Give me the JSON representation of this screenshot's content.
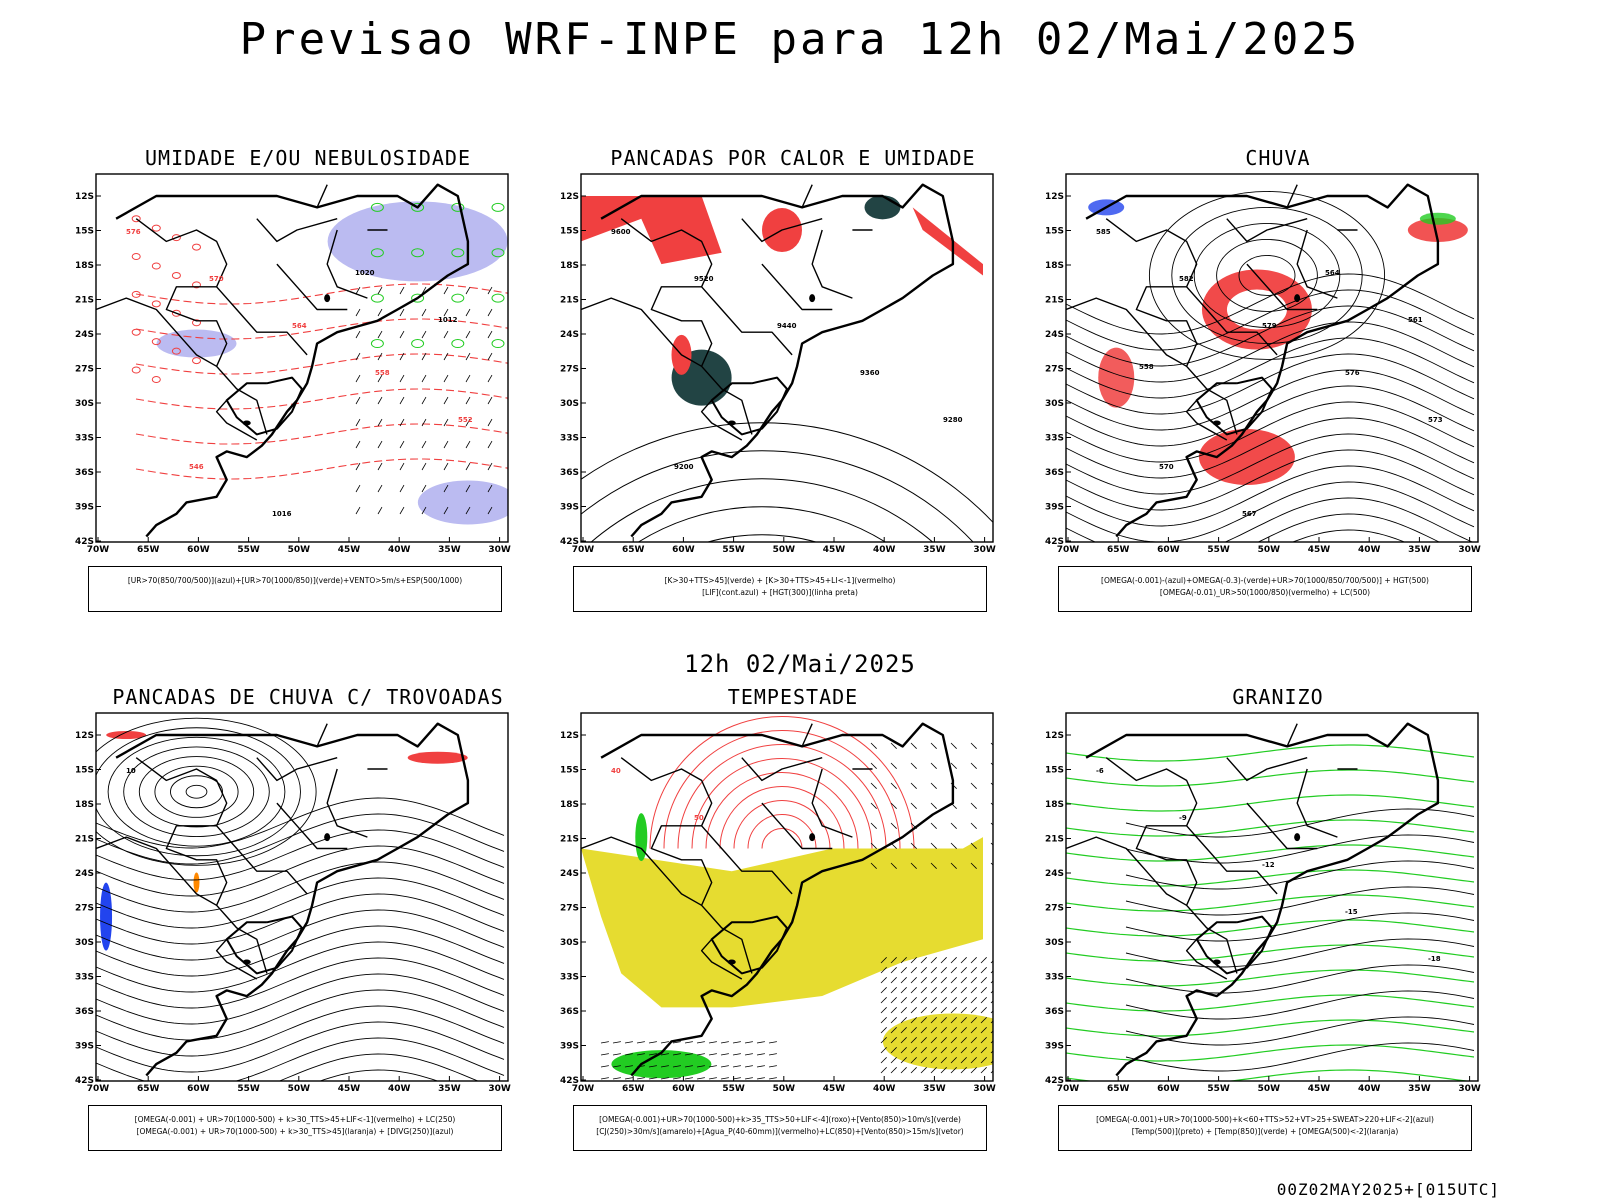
{
  "main_title": "Previsao WRF-INPE  para 12h 02/Mai/2025",
  "mid_title": "12h 02/Mai/2025",
  "footer": "00Z02MAY2025+[015UTC]",
  "axes": {
    "lat_labels": [
      "12S",
      "15S",
      "18S",
      "21S",
      "24S",
      "27S",
      "30S",
      "33S",
      "36S",
      "39S",
      "42S"
    ],
    "lon_labels": [
      "70W",
      "65W",
      "60W",
      "55W",
      "50W",
      "45W",
      "40W",
      "35W",
      "30W"
    ]
  },
  "colors": {
    "red": "#f04040",
    "green": "#22cc22",
    "blue": "#2244ee",
    "lavender": "#aaaaee",
    "darkteal": "#224444",
    "yellow": "#e6dc30",
    "orange": "#ff8800"
  },
  "panels": [
    {
      "title": "UMIDADE E/OU NEBULOSIDADE",
      "legend": [
        "[UR>70(850/700/500)](azul)+[UR>70(1000/850)](verde)+VENTO>5m/s+ESP(500/1000)"
      ],
      "contour_labels": [
        "576",
        "570",
        "564",
        "558",
        "552",
        "546",
        "1016",
        "1020",
        "1012"
      ]
    },
    {
      "title": "PANCADAS POR CALOR E UMIDADE",
      "legend": [
        "[K>30+TTS>45](verde)  +  [K>30+TTS>45+LI<-1](vermelho)",
        "[LIF](cont.azul)  +  [HGT(300)](linha preta)"
      ],
      "contour_labels": [
        "9600",
        "9520",
        "9440",
        "9360",
        "9280",
        "9200"
      ]
    },
    {
      "title": "CHUVA",
      "legend": [
        "[OMEGA(-0.001)-(azul)+OMEGA(-0.3)-(verde)+UR>70(1000/850/700/500)]  +  HGT(500)",
        "[OMEGA(-0.01)_UR>50(1000/850)(vermelho)  +  LC(500)"
      ],
      "contour_labels": [
        "585",
        "582",
        "579",
        "576",
        "573",
        "570",
        "567",
        "564",
        "561",
        "558"
      ]
    },
    {
      "title": "PANCADAS DE CHUVA C/ TROVOADAS",
      "legend": [
        "[OMEGA(-0.001)  +  UR>70(1000-500)  +  k>30_TTS>45+LIF<-1](vermelho)  +  LC(250)",
        "[OMEGA(-0.001)  +  UR>70(1000-500)  +  k>30_TTS>45](laranja)  +  [DIVG(250)](azul)"
      ],
      "contour_labels": [
        "10"
      ]
    },
    {
      "title": "TEMPESTADE",
      "legend": [
        "[OMEGA(-0.001)+UR>70(1000-500)+k>35_TTS>50+LIF<-4](roxo)+[Vento(850)>10m/s](verde)",
        "[CJ(250)>30m/s](amarelo)+[Agua_P(40-60mm)](vermelho)+LC(850)+[Vento(850)>15m/s](vetor)"
      ],
      "contour_labels": [
        "40",
        "50"
      ]
    },
    {
      "title": "GRANIZO",
      "legend": [
        "[OMEGA(-0.001)+UR>70(1000-500)+k<60+TTS>52+VT>25+SWEAT>220+LIF<-2](azul)",
        "[Temp(500)](preto)  +  [Temp(850)](verde)  +  [OMEGA(500)<-2](laranja)"
      ],
      "contour_labels": [
        "-6",
        "-9",
        "-12",
        "-15",
        "-18"
      ]
    }
  ]
}
